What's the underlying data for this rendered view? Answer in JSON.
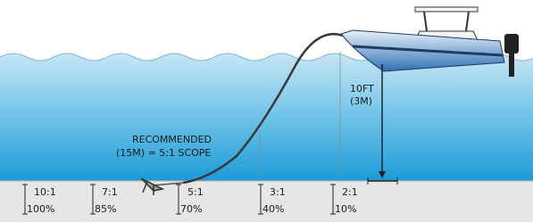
{
  "depth": {
    "feet": "10FT",
    "meters": "(3M)"
  },
  "recommendation": {
    "line1": "RECOMMENDED",
    "line2": "(15M) = 5:1 SCOPE"
  },
  "scopes": [
    {
      "ratio": "10:1",
      "holding": "100%"
    },
    {
      "ratio": "7:1",
      "holding": "85%"
    },
    {
      "ratio": "5:1",
      "holding": "70%"
    },
    {
      "ratio": "3:1",
      "holding": "40%"
    },
    {
      "ratio": "2:1",
      "holding": "10%"
    }
  ]
}
